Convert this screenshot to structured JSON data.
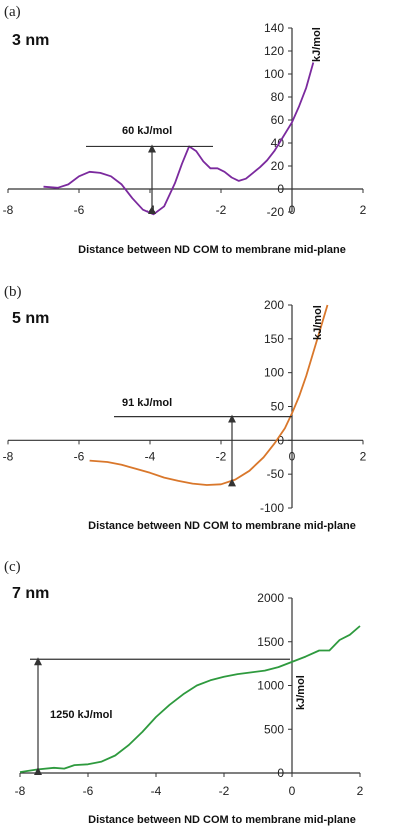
{
  "colors": {
    "panel_a_line": "#7b2a9e",
    "panel_b_line": "#d9772b",
    "panel_c_line": "#2e9a3e",
    "axis": "#333333"
  },
  "chart_data": [
    {
      "type": "line",
      "panel_letter": "(a)",
      "size_label": "3 nm",
      "xlabel": "Distance between ND COM to membrane mid-plane",
      "ylabel": "kJ/mol",
      "xlim": [
        -8,
        2
      ],
      "ylim": [
        -20,
        140
      ],
      "x_ticks": [
        -8,
        -6,
        -4,
        -2,
        0,
        2
      ],
      "y_ticks": [
        -20,
        0,
        20,
        40,
        60,
        80,
        100,
        120,
        140
      ],
      "annotation": {
        "text": "60 kJ/mol",
        "from_y": -20,
        "to_y": 37
      },
      "series": [
        {
          "x": [
            -7.0,
            -6.6,
            -6.3,
            -6.0,
            -5.7,
            -5.4,
            -5.1,
            -4.8,
            -4.5,
            -4.2,
            -3.9,
            -3.6,
            -3.3,
            -3.1,
            -2.9,
            -2.7,
            -2.5,
            -2.3,
            -2.1,
            -1.9,
            -1.7,
            -1.5,
            -1.3,
            -1.1,
            -0.9,
            -0.7,
            -0.5,
            -0.3,
            0.0,
            0.2,
            0.4,
            0.6
          ],
          "y": [
            2,
            1,
            4,
            11,
            15,
            14,
            11,
            4,
            -8,
            -18,
            -22,
            -15,
            5,
            22,
            37,
            33,
            24,
            18,
            18,
            15,
            10,
            7,
            9,
            14,
            19,
            25,
            33,
            43,
            58,
            72,
            88,
            110
          ]
        }
      ]
    },
    {
      "type": "line",
      "panel_letter": "(b)",
      "size_label": "5 nm",
      "xlabel": "Distance between ND COM to membrane mid-plane",
      "ylabel": "kJ/mol",
      "xlim": [
        -8,
        2
      ],
      "ylim": [
        -100,
        200
      ],
      "x_ticks": [
        -8,
        -6,
        -4,
        -2,
        0,
        2
      ],
      "y_ticks": [
        -100,
        -50,
        0,
        50,
        100,
        150,
        200
      ],
      "annotation": {
        "text": "91 kJ/mol",
        "from_y": -65,
        "to_y": 35
      },
      "series": [
        {
          "x": [
            -5.7,
            -5.2,
            -4.8,
            -4.4,
            -4.0,
            -3.6,
            -3.2,
            -2.8,
            -2.4,
            -2.0,
            -1.6,
            -1.2,
            -0.8,
            -0.5,
            -0.2,
            0.0,
            0.2,
            0.4,
            0.6,
            0.8,
            1.0
          ],
          "y": [
            -30,
            -32,
            -36,
            -42,
            -48,
            -55,
            -60,
            -64,
            -66,
            -65,
            -58,
            -45,
            -25,
            -5,
            18,
            40,
            65,
            95,
            130,
            165,
            200
          ]
        }
      ]
    },
    {
      "type": "line",
      "panel_letter": "(c)",
      "size_label": "7 nm",
      "xlabel": "Distance between ND COM to membrane mid-plane",
      "ylabel": "kJ/mol",
      "xlim": [
        -8,
        2
      ],
      "ylim": [
        0,
        2000
      ],
      "x_ticks": [
        -8,
        -6,
        -4,
        -2,
        0,
        2
      ],
      "y_ticks": [
        0,
        500,
        1000,
        1500,
        2000
      ],
      "annotation": {
        "text": "1250 kJ/mol",
        "from_y": 0,
        "to_y": 1300
      },
      "series": [
        {
          "x": [
            -8.0,
            -7.5,
            -7.0,
            -6.7,
            -6.4,
            -6.0,
            -5.6,
            -5.2,
            -4.8,
            -4.4,
            -4.0,
            -3.6,
            -3.2,
            -2.8,
            -2.4,
            -2.0,
            -1.6,
            -1.2,
            -0.8,
            -0.4,
            0.0,
            0.4,
            0.8,
            1.1,
            1.4,
            1.7,
            2.0
          ],
          "y": [
            10,
            40,
            60,
            50,
            90,
            100,
            130,
            200,
            320,
            470,
            640,
            780,
            900,
            1000,
            1060,
            1100,
            1130,
            1150,
            1170,
            1210,
            1270,
            1330,
            1400,
            1400,
            1520,
            1580,
            1680
          ]
        }
      ]
    }
  ]
}
